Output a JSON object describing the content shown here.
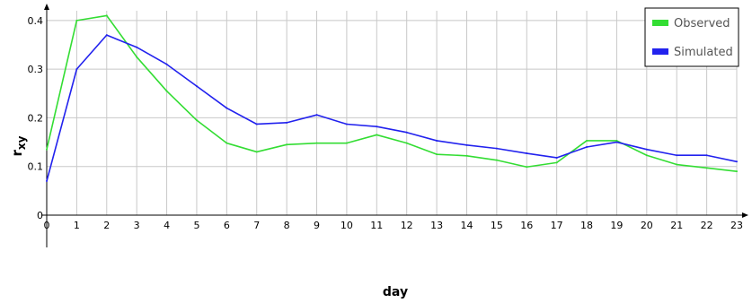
{
  "chart_data": {
    "type": "line",
    "xlabel": "day",
    "ylabel_main": "r",
    "ylabel_sub": "xy",
    "x": [
      0,
      1,
      2,
      3,
      4,
      5,
      6,
      7,
      8,
      9,
      10,
      11,
      12,
      13,
      14,
      15,
      16,
      17,
      18,
      19,
      20,
      21,
      22,
      23
    ],
    "x_tick_labels": [
      "0",
      "1",
      "2",
      "3",
      "4",
      "5",
      "6",
      "7",
      "8",
      "9",
      "10",
      "11",
      "12",
      "13",
      "14",
      "15",
      "16",
      "17",
      "18",
      "19",
      "20",
      "21",
      "22",
      "23"
    ],
    "y_ticks": [
      0,
      0.1,
      0.2,
      0.3,
      0.4
    ],
    "y_tick_labels": [
      "0",
      "0.1",
      "0.2",
      "0.3",
      "0.4"
    ],
    "xlim": [
      0,
      23
    ],
    "ylim": [
      0,
      0.42
    ],
    "grid": true,
    "legend_position": "top-right",
    "series": [
      {
        "name": "Observed",
        "color": "#33dd33",
        "values": [
          0.135,
          0.4,
          0.41,
          0.325,
          0.255,
          0.195,
          0.148,
          0.13,
          0.145,
          0.148,
          0.148,
          0.165,
          0.148,
          0.125,
          0.122,
          0.113,
          0.099,
          0.108,
          0.153,
          0.153,
          0.123,
          0.104,
          0.097,
          0.09
        ]
      },
      {
        "name": "Simulated",
        "color": "#2222ee",
        "values": [
          0.07,
          0.3,
          0.37,
          0.345,
          0.31,
          0.265,
          0.22,
          0.187,
          0.19,
          0.206,
          0.187,
          0.182,
          0.17,
          0.153,
          0.144,
          0.137,
          0.127,
          0.118,
          0.14,
          0.15,
          0.135,
          0.123,
          0.123,
          0.11
        ]
      }
    ]
  }
}
